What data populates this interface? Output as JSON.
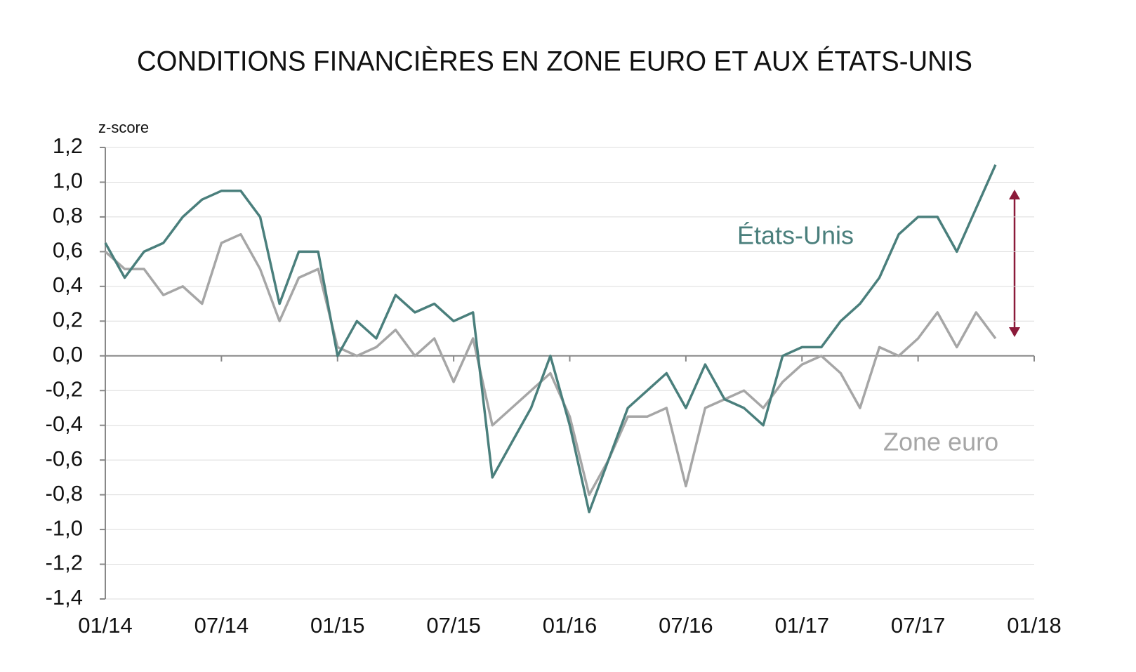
{
  "chart_data": {
    "type": "line",
    "title": "CONDITIONS FINANCIÈRES EN ZONE EURO ET AUX ÉTATS-UNIS",
    "y_label": "z-score",
    "x": [
      "2014-01",
      "2014-02",
      "2014-03",
      "2014-04",
      "2014-05",
      "2014-06",
      "2014-07",
      "2014-08",
      "2014-09",
      "2014-10",
      "2014-11",
      "2014-12",
      "2015-01",
      "2015-02",
      "2015-03",
      "2015-04",
      "2015-05",
      "2015-06",
      "2015-07",
      "2015-08",
      "2015-09",
      "2015-10",
      "2015-11",
      "2015-12",
      "2016-01",
      "2016-02",
      "2016-03",
      "2016-04",
      "2016-05",
      "2016-06",
      "2016-07",
      "2016-08",
      "2016-09",
      "2016-10",
      "2016-11",
      "2016-12",
      "2017-01",
      "2017-02",
      "2017-03",
      "2017-04",
      "2017-05",
      "2017-06",
      "2017-07",
      "2017-08",
      "2017-09",
      "2017-10",
      "2017-11"
    ],
    "series": [
      {
        "name": "États-Unis",
        "color": "#4a7f7c",
        "values": [
          0.65,
          0.45,
          0.6,
          0.65,
          0.8,
          0.9,
          0.95,
          0.95,
          0.8,
          0.3,
          0.6,
          0.6,
          0.0,
          0.2,
          0.1,
          0.35,
          0.25,
          0.3,
          0.2,
          0.25,
          -0.7,
          -0.5,
          -0.3,
          0.0,
          -0.4,
          -0.9,
          -0.6,
          -0.3,
          -0.2,
          -0.1,
          -0.3,
          -0.05,
          -0.25,
          -0.3,
          -0.4,
          0.0,
          0.05,
          0.05,
          0.2,
          0.3,
          0.45,
          0.7,
          0.8,
          0.8,
          0.6,
          0.85,
          1.1
        ]
      },
      {
        "name": "Zone euro",
        "color": "#a6a6a6",
        "values": [
          0.6,
          0.5,
          0.5,
          0.35,
          0.4,
          0.3,
          0.65,
          0.7,
          0.5,
          0.2,
          0.45,
          0.5,
          0.05,
          0.0,
          0.05,
          0.15,
          0.0,
          0.1,
          -0.15,
          0.1,
          -0.4,
          -0.3,
          -0.2,
          -0.1,
          -0.35,
          -0.8,
          -0.6,
          -0.35,
          -0.35,
          -0.3,
          -0.75,
          -0.3,
          -0.25,
          -0.2,
          -0.3,
          -0.15,
          -0.05,
          0.0,
          -0.1,
          -0.3,
          0.05,
          0.0,
          0.1,
          0.25,
          0.05,
          0.25,
          0.1
        ]
      }
    ],
    "xlim": [
      "2014-01",
      "2018-01"
    ],
    "xticks": [
      {
        "value": "2014-01",
        "label": "01/14"
      },
      {
        "value": "2014-07",
        "label": "07/14"
      },
      {
        "value": "2015-01",
        "label": "01/15"
      },
      {
        "value": "2015-07",
        "label": "07/15"
      },
      {
        "value": "2016-01",
        "label": "01/16"
      },
      {
        "value": "2016-07",
        "label": "07/16"
      },
      {
        "value": "2017-01",
        "label": "01/17"
      },
      {
        "value": "2017-07",
        "label": "07/17"
      },
      {
        "value": "2018-01",
        "label": "01/18"
      }
    ],
    "ylim": [
      -1.4,
      1.2
    ],
    "yticks": [
      {
        "value": -1.4,
        "label": "-1,4"
      },
      {
        "value": -1.2,
        "label": "-1,2"
      },
      {
        "value": -1.0,
        "label": "-1,0"
      },
      {
        "value": -0.8,
        "label": "-0,8"
      },
      {
        "value": -0.6,
        "label": "-0,6"
      },
      {
        "value": -0.4,
        "label": "-0,4"
      },
      {
        "value": -0.2,
        "label": "-0,2"
      },
      {
        "value": 0,
        "label": "0,0"
      },
      {
        "value": 0.2,
        "label": "0,2"
      },
      {
        "value": 0.4,
        "label": "0,4"
      },
      {
        "value": 0.6,
        "label": "0,6"
      },
      {
        "value": 0.8,
        "label": "0,8"
      },
      {
        "value": 1.0,
        "label": "1,0"
      },
      {
        "value": 1.2,
        "label": "1,2"
      }
    ],
    "grid": true
  }
}
